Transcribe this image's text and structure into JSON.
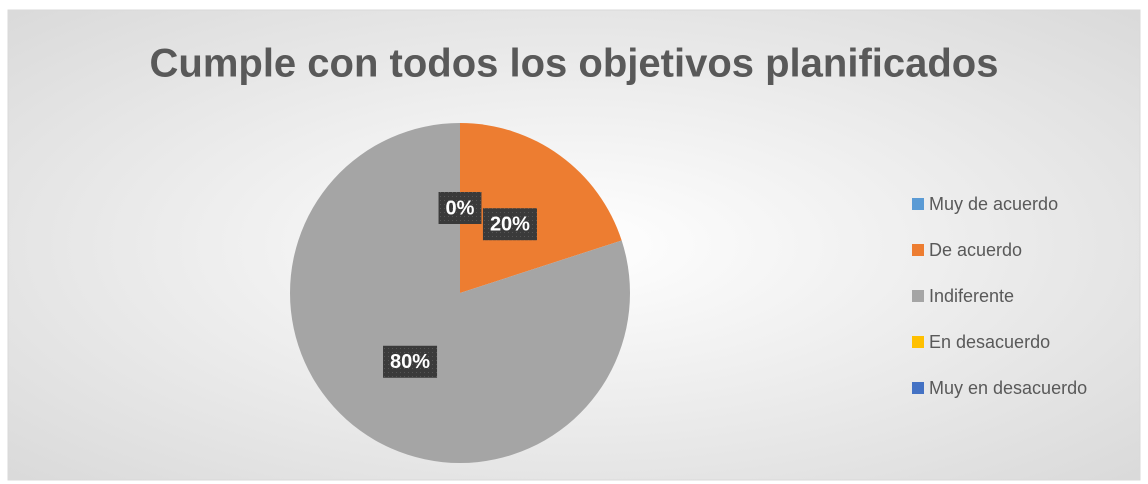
{
  "chart_data": {
    "type": "pie",
    "title": "Cumple con todos los objetivos planificados",
    "categories": [
      "Muy de acuerdo",
      "De acuerdo",
      "Indiferente",
      "En desacuerdo",
      "Muy en desacuerdo"
    ],
    "values": [
      0,
      20,
      80,
      0,
      0
    ],
    "value_labels": [
      "0%",
      "20%",
      "80%",
      null,
      null
    ],
    "colors": [
      "#5b9bd5",
      "#ed7d31",
      "#a5a5a5",
      "#ffc000",
      "#4472c4"
    ],
    "legend": "right"
  }
}
